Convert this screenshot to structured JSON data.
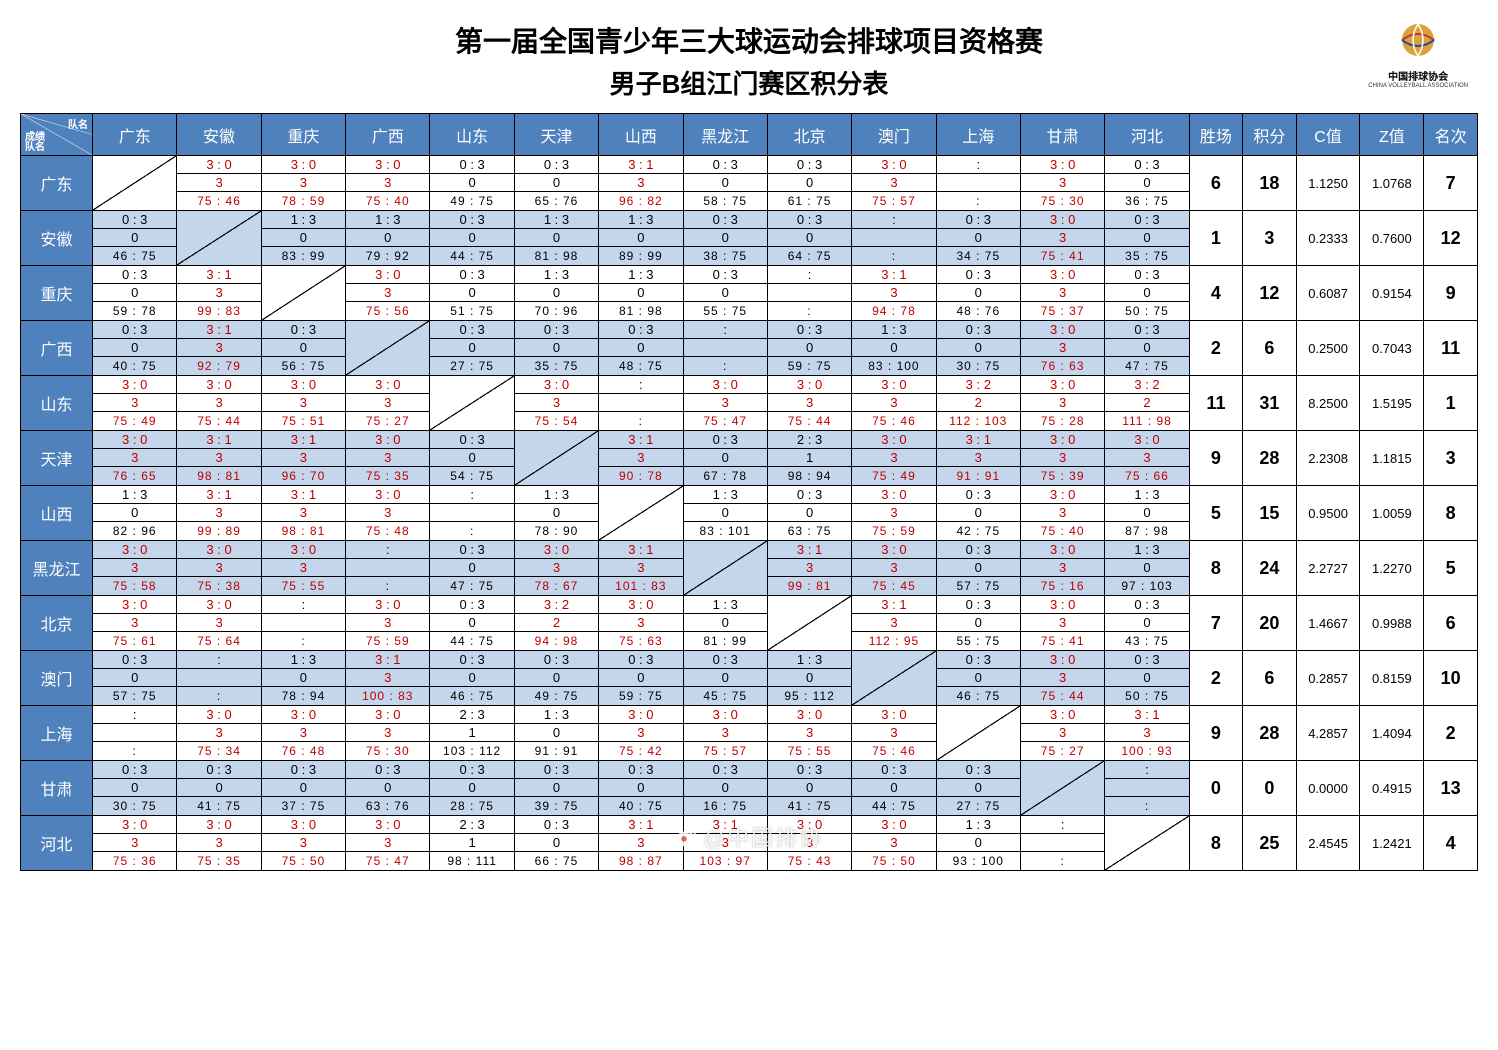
{
  "title_line1": "第一届全国青少年三大球运动会排球项目资格赛",
  "title_line2": "男子B组江门赛区积分表",
  "logo_text": "中国排球协会",
  "logo_sub": "CHINA VOLLEYBALL ASSOCIATION",
  "watermark": "@中国排协",
  "corner_labels": {
    "top": "队名",
    "mid": "成绩",
    "bot": "队名"
  },
  "col_teams": [
    "广东",
    "安徽",
    "重庆",
    "广西",
    "山东",
    "天津",
    "山西",
    "黑龙江",
    "北京",
    "澳门",
    "上海",
    "甘肃",
    "河北"
  ],
  "row_teams": [
    "广东",
    "安徽",
    "重庆",
    "广西",
    "山东",
    "天津",
    "山西",
    "黑龙江",
    "北京",
    "澳门",
    "上海",
    "甘肃",
    "河北"
  ],
  "stat_headers": [
    "胜场",
    "积分",
    "C值",
    "Z值",
    "名次"
  ],
  "stats": [
    {
      "wins": "6",
      "pts": "18",
      "c": "1.1250",
      "z": "1.0768",
      "rank": "7"
    },
    {
      "wins": "1",
      "pts": "3",
      "c": "0.2333",
      "z": "0.7600",
      "rank": "12"
    },
    {
      "wins": "4",
      "pts": "12",
      "c": "0.6087",
      "z": "0.9154",
      "rank": "9"
    },
    {
      "wins": "2",
      "pts": "6",
      "c": "0.2500",
      "z": "0.7043",
      "rank": "11"
    },
    {
      "wins": "11",
      "pts": "31",
      "c": "8.2500",
      "z": "1.5195",
      "rank": "1"
    },
    {
      "wins": "9",
      "pts": "28",
      "c": "2.2308",
      "z": "1.1815",
      "rank": "3"
    },
    {
      "wins": "5",
      "pts": "15",
      "c": "0.9500",
      "z": "1.0059",
      "rank": "8"
    },
    {
      "wins": "8",
      "pts": "24",
      "c": "2.2727",
      "z": "1.2270",
      "rank": "5"
    },
    {
      "wins": "7",
      "pts": "20",
      "c": "1.4667",
      "z": "0.9988",
      "rank": "6"
    },
    {
      "wins": "2",
      "pts": "6",
      "c": "0.2857",
      "z": "0.8159",
      "rank": "10"
    },
    {
      "wins": "9",
      "pts": "28",
      "c": "4.2857",
      "z": "1.4094",
      "rank": "2"
    },
    {
      "wins": "0",
      "pts": "0",
      "c": "0.0000",
      "z": "0.4915",
      "rank": "13"
    },
    {
      "wins": "8",
      "pts": "25",
      "c": "2.4545",
      "z": "1.2421",
      "rank": "4"
    }
  ],
  "grid": [
    [
      null,
      {
        "s": "3 : 0",
        "p": "3",
        "t": "75 : 46",
        "w": true
      },
      {
        "s": "3 : 0",
        "p": "3",
        "t": "78 : 59",
        "w": true
      },
      {
        "s": "3 : 0",
        "p": "3",
        "t": "75 : 40",
        "w": true
      },
      {
        "s": "0 : 3",
        "p": "0",
        "t": "49 : 75",
        "w": false
      },
      {
        "s": "0 : 3",
        "p": "0",
        "t": "65 : 76",
        "w": false
      },
      {
        "s": "3 : 1",
        "p": "3",
        "t": "96 : 82",
        "w": true
      },
      {
        "s": "0 : 3",
        "p": "0",
        "t": "58 : 75",
        "w": false
      },
      {
        "s": "0 : 3",
        "p": "0",
        "t": "61 : 75",
        "w": false
      },
      {
        "s": "3 : 0",
        "p": "3",
        "t": "75 : 57",
        "w": true
      },
      {
        "s": ":",
        "p": "",
        "t": ":",
        "w": null
      },
      {
        "s": "3 : 0",
        "p": "3",
        "t": "75 : 30",
        "w": true
      },
      {
        "s": "0 : 3",
        "p": "0",
        "t": "36 : 75",
        "w": false
      }
    ],
    [
      {
        "s": "0 : 3",
        "p": "0",
        "t": "46 : 75",
        "w": false
      },
      null,
      {
        "s": "1 : 3",
        "p": "0",
        "t": "83 : 99",
        "w": false
      },
      {
        "s": "1 : 3",
        "p": "0",
        "t": "79 : 92",
        "w": false
      },
      {
        "s": "0 : 3",
        "p": "0",
        "t": "44 : 75",
        "w": false
      },
      {
        "s": "1 : 3",
        "p": "0",
        "t": "81 : 98",
        "w": false
      },
      {
        "s": "1 : 3",
        "p": "0",
        "t": "89 : 99",
        "w": false
      },
      {
        "s": "0 : 3",
        "p": "0",
        "t": "38 : 75",
        "w": false
      },
      {
        "s": "0 : 3",
        "p": "0",
        "t": "64 : 75",
        "w": false
      },
      {
        "s": ":",
        "p": "",
        "t": ":",
        "w": null
      },
      {
        "s": "0 : 3",
        "p": "0",
        "t": "34 : 75",
        "w": false
      },
      {
        "s": "3 : 0",
        "p": "3",
        "t": "75 : 41",
        "w": true
      },
      {
        "s": "0 : 3",
        "p": "0",
        "t": "35 : 75",
        "w": false
      }
    ],
    [
      {
        "s": "0 : 3",
        "p": "0",
        "t": "59 : 78",
        "w": false
      },
      {
        "s": "3 : 1",
        "p": "3",
        "t": "99 : 83",
        "w": true
      },
      null,
      {
        "s": "3 : 0",
        "p": "3",
        "t": "75 : 56",
        "w": true
      },
      {
        "s": "0 : 3",
        "p": "0",
        "t": "51 : 75",
        "w": false
      },
      {
        "s": "1 : 3",
        "p": "0",
        "t": "70 : 96",
        "w": false
      },
      {
        "s": "1 : 3",
        "p": "0",
        "t": "81 : 98",
        "w": false
      },
      {
        "s": "0 : 3",
        "p": "0",
        "t": "55 : 75",
        "w": false
      },
      {
        "s": ":",
        "p": "",
        "t": ":",
        "w": null
      },
      {
        "s": "3 : 1",
        "p": "3",
        "t": "94 : 78",
        "w": true
      },
      {
        "s": "0 : 3",
        "p": "0",
        "t": "48 : 76",
        "w": false
      },
      {
        "s": "3 : 0",
        "p": "3",
        "t": "75 : 37",
        "w": true
      },
      {
        "s": "0 : 3",
        "p": "0",
        "t": "50 : 75",
        "w": false
      }
    ],
    [
      {
        "s": "0 : 3",
        "p": "0",
        "t": "40 : 75",
        "w": false
      },
      {
        "s": "3 : 1",
        "p": "3",
        "t": "92 : 79",
        "w": true
      },
      {
        "s": "0 : 3",
        "p": "0",
        "t": "56 : 75",
        "w": false
      },
      null,
      {
        "s": "0 : 3",
        "p": "0",
        "t": "27 : 75",
        "w": false
      },
      {
        "s": "0 : 3",
        "p": "0",
        "t": "35 : 75",
        "w": false
      },
      {
        "s": "0 : 3",
        "p": "0",
        "t": "48 : 75",
        "w": false
      },
      {
        "s": ":",
        "p": "",
        "t": ":",
        "w": null
      },
      {
        "s": "0 : 3",
        "p": "0",
        "t": "59 : 75",
        "w": false
      },
      {
        "s": "1 : 3",
        "p": "0",
        "t": "83 : 100",
        "w": false
      },
      {
        "s": "0 : 3",
        "p": "0",
        "t": "30 : 75",
        "w": false
      },
      {
        "s": "3 : 0",
        "p": "3",
        "t": "76 : 63",
        "w": true
      },
      {
        "s": "0 : 3",
        "p": "0",
        "t": "47 : 75",
        "w": false
      }
    ],
    [
      {
        "s": "3 : 0",
        "p": "3",
        "t": "75 : 49",
        "w": true
      },
      {
        "s": "3 : 0",
        "p": "3",
        "t": "75 : 44",
        "w": true
      },
      {
        "s": "3 : 0",
        "p": "3",
        "t": "75 : 51",
        "w": true
      },
      {
        "s": "3 : 0",
        "p": "3",
        "t": "75 : 27",
        "w": true
      },
      null,
      {
        "s": "3 : 0",
        "p": "3",
        "t": "75 : 54",
        "w": true
      },
      {
        "s": ":",
        "p": "",
        "t": ":",
        "w": null
      },
      {
        "s": "3 : 0",
        "p": "3",
        "t": "75 : 47",
        "w": true
      },
      {
        "s": "3 : 0",
        "p": "3",
        "t": "75 : 44",
        "w": true
      },
      {
        "s": "3 : 0",
        "p": "3",
        "t": "75 : 46",
        "w": true
      },
      {
        "s": "3 : 2",
        "p": "2",
        "t": "112 : 103",
        "w": true
      },
      {
        "s": "3 : 0",
        "p": "3",
        "t": "75 : 28",
        "w": true
      },
      {
        "s": "3 : 2",
        "p": "2",
        "t": "111 : 98",
        "w": true
      }
    ],
    [
      {
        "s": "3 : 0",
        "p": "3",
        "t": "76 : 65",
        "w": true
      },
      {
        "s": "3 : 1",
        "p": "3",
        "t": "98 : 81",
        "w": true
      },
      {
        "s": "3 : 1",
        "p": "3",
        "t": "96 : 70",
        "w": true
      },
      {
        "s": "3 : 0",
        "p": "3",
        "t": "75 : 35",
        "w": true
      },
      {
        "s": "0 : 3",
        "p": "0",
        "t": "54 : 75",
        "w": false
      },
      null,
      {
        "s": "3 : 1",
        "p": "3",
        "t": "90 : 78",
        "w": true
      },
      {
        "s": "0 : 3",
        "p": "0",
        "t": "67 : 78",
        "w": false
      },
      {
        "s": "2 : 3",
        "p": "1",
        "t": "98 : 94",
        "w": false
      },
      {
        "s": "3 : 0",
        "p": "3",
        "t": "75 : 49",
        "w": true
      },
      {
        "s": "3 : 1",
        "p": "3",
        "t": "91 : 91",
        "w": true
      },
      {
        "s": "3 : 0",
        "p": "3",
        "t": "75 : 39",
        "w": true
      },
      {
        "s": "3 : 0",
        "p": "3",
        "t": "75 : 66",
        "w": true
      }
    ],
    [
      {
        "s": "1 : 3",
        "p": "0",
        "t": "82 : 96",
        "w": false
      },
      {
        "s": "3 : 1",
        "p": "3",
        "t": "99 : 89",
        "w": true
      },
      {
        "s": "3 : 1",
        "p": "3",
        "t": "98 : 81",
        "w": true
      },
      {
        "s": "3 : 0",
        "p": "3",
        "t": "75 : 48",
        "w": true
      },
      {
        "s": ":",
        "p": "",
        "t": ":",
        "w": null
      },
      {
        "s": "1 : 3",
        "p": "0",
        "t": "78 : 90",
        "w": false
      },
      null,
      {
        "s": "1 : 3",
        "p": "0",
        "t": "83 : 101",
        "w": false
      },
      {
        "s": "0 : 3",
        "p": "0",
        "t": "63 : 75",
        "w": false
      },
      {
        "s": "3 : 0",
        "p": "3",
        "t": "75 : 59",
        "w": true
      },
      {
        "s": "0 : 3",
        "p": "0",
        "t": "42 : 75",
        "w": false
      },
      {
        "s": "3 : 0",
        "p": "3",
        "t": "75 : 40",
        "w": true
      },
      {
        "s": "1 : 3",
        "p": "0",
        "t": "87 : 98",
        "w": false
      }
    ],
    [
      {
        "s": "3 : 0",
        "p": "3",
        "t": "75 : 58",
        "w": true
      },
      {
        "s": "3 : 0",
        "p": "3",
        "t": "75 : 38",
        "w": true
      },
      {
        "s": "3 : 0",
        "p": "3",
        "t": "75 : 55",
        "w": true
      },
      {
        "s": ":",
        "p": "",
        "t": ":",
        "w": null
      },
      {
        "s": "0 : 3",
        "p": "0",
        "t": "47 : 75",
        "w": false
      },
      {
        "s": "3 : 0",
        "p": "3",
        "t": "78 : 67",
        "w": true
      },
      {
        "s": "3 : 1",
        "p": "3",
        "t": "101 : 83",
        "w": true
      },
      null,
      {
        "s": "3 : 1",
        "p": "3",
        "t": "99 : 81",
        "w": true
      },
      {
        "s": "3 : 0",
        "p": "3",
        "t": "75 : 45",
        "w": true
      },
      {
        "s": "0 : 3",
        "p": "0",
        "t": "57 : 75",
        "w": false
      },
      {
        "s": "3 : 0",
        "p": "3",
        "t": "75 : 16",
        "w": true
      },
      {
        "s": "1 : 3",
        "p": "0",
        "t": "97 : 103",
        "w": false
      }
    ],
    [
      {
        "s": "3 : 0",
        "p": "3",
        "t": "75 : 61",
        "w": true
      },
      {
        "s": "3 : 0",
        "p": "3",
        "t": "75 : 64",
        "w": true
      },
      {
        "s": ":",
        "p": "",
        "t": ":",
        "w": null
      },
      {
        "s": "3 : 0",
        "p": "3",
        "t": "75 : 59",
        "w": true
      },
      {
        "s": "0 : 3",
        "p": "0",
        "t": "44 : 75",
        "w": false
      },
      {
        "s": "3 : 2",
        "p": "2",
        "t": "94 : 98",
        "w": true
      },
      {
        "s": "3 : 0",
        "p": "3",
        "t": "75 : 63",
        "w": true
      },
      {
        "s": "1 : 3",
        "p": "0",
        "t": "81 : 99",
        "w": false
      },
      null,
      {
        "s": "3 : 1",
        "p": "3",
        "t": "112 : 95",
        "w": true
      },
      {
        "s": "0 : 3",
        "p": "0",
        "t": "55 : 75",
        "w": false
      },
      {
        "s": "3 : 0",
        "p": "3",
        "t": "75 : 41",
        "w": true
      },
      {
        "s": "0 : 3",
        "p": "0",
        "t": "43 : 75",
        "w": false
      }
    ],
    [
      {
        "s": "0 : 3",
        "p": "0",
        "t": "57 : 75",
        "w": false
      },
      {
        "s": ":",
        "p": "",
        "t": ":",
        "w": null
      },
      {
        "s": "1 : 3",
        "p": "0",
        "t": "78 : 94",
        "w": false
      },
      {
        "s": "3 : 1",
        "p": "3",
        "t": "100 : 83",
        "w": true
      },
      {
        "s": "0 : 3",
        "p": "0",
        "t": "46 : 75",
        "w": false
      },
      {
        "s": "0 : 3",
        "p": "0",
        "t": "49 : 75",
        "w": false
      },
      {
        "s": "0 : 3",
        "p": "0",
        "t": "59 : 75",
        "w": false
      },
      {
        "s": "0 : 3",
        "p": "0",
        "t": "45 : 75",
        "w": false
      },
      {
        "s": "1 : 3",
        "p": "0",
        "t": "95 : 112",
        "w": false
      },
      null,
      {
        "s": "0 : 3",
        "p": "0",
        "t": "46 : 75",
        "w": false
      },
      {
        "s": "3 : 0",
        "p": "3",
        "t": "75 : 44",
        "w": true
      },
      {
        "s": "0 : 3",
        "p": "0",
        "t": "50 : 75",
        "w": false
      }
    ],
    [
      {
        "s": ":",
        "p": "",
        "t": ":",
        "w": null
      },
      {
        "s": "3 : 0",
        "p": "3",
        "t": "75 : 34",
        "w": true
      },
      {
        "s": "3 : 0",
        "p": "3",
        "t": "76 : 48",
        "w": true
      },
      {
        "s": "3 : 0",
        "p": "3",
        "t": "75 : 30",
        "w": true
      },
      {
        "s": "2 : 3",
        "p": "1",
        "t": "103 : 112",
        "w": false
      },
      {
        "s": "1 : 3",
        "p": "0",
        "t": "91 : 91",
        "w": false
      },
      {
        "s": "3 : 0",
        "p": "3",
        "t": "75 : 42",
        "w": true
      },
      {
        "s": "3 : 0",
        "p": "3",
        "t": "75 : 57",
        "w": true
      },
      {
        "s": "3 : 0",
        "p": "3",
        "t": "75 : 55",
        "w": true
      },
      {
        "s": "3 : 0",
        "p": "3",
        "t": "75 : 46",
        "w": true
      },
      null,
      {
        "s": "3 : 0",
        "p": "3",
        "t": "75 : 27",
        "w": true
      },
      {
        "s": "3 : 1",
        "p": "3",
        "t": "100 : 93",
        "w": true
      }
    ],
    [
      {
        "s": "0 : 3",
        "p": "0",
        "t": "30 : 75",
        "w": false
      },
      {
        "s": "0 : 3",
        "p": "0",
        "t": "41 : 75",
        "w": false
      },
      {
        "s": "0 : 3",
        "p": "0",
        "t": "37 : 75",
        "w": false
      },
      {
        "s": "0 : 3",
        "p": "0",
        "t": "63 : 76",
        "w": false
      },
      {
        "s": "0 : 3",
        "p": "0",
        "t": "28 : 75",
        "w": false
      },
      {
        "s": "0 : 3",
        "p": "0",
        "t": "39 : 75",
        "w": false
      },
      {
        "s": "0 : 3",
        "p": "0",
        "t": "40 : 75",
        "w": false
      },
      {
        "s": "0 : 3",
        "p": "0",
        "t": "16 : 75",
        "w": false
      },
      {
        "s": "0 : 3",
        "p": "0",
        "t": "41 : 75",
        "w": false
      },
      {
        "s": "0 : 3",
        "p": "0",
        "t": "44 : 75",
        "w": false
      },
      {
        "s": "0 : 3",
        "p": "0",
        "t": "27 : 75",
        "w": false
      },
      null,
      {
        "s": ":",
        "p": "",
        "t": ":",
        "w": null
      }
    ],
    [
      {
        "s": "3 : 0",
        "p": "3",
        "t": "75 : 36",
        "w": true
      },
      {
        "s": "3 : 0",
        "p": "3",
        "t": "75 : 35",
        "w": true
      },
      {
        "s": "3 : 0",
        "p": "3",
        "t": "75 : 50",
        "w": true
      },
      {
        "s": "3 : 0",
        "p": "3",
        "t": "75 : 47",
        "w": true
      },
      {
        "s": "2 : 3",
        "p": "1",
        "t": "98 : 111",
        "w": false
      },
      {
        "s": "0 : 3",
        "p": "0",
        "t": "66 : 75",
        "w": false
      },
      {
        "s": "3 : 1",
        "p": "3",
        "t": "98 : 87",
        "w": true
      },
      {
        "s": "3 : 1",
        "p": "3",
        "t": "103 : 97",
        "w": true
      },
      {
        "s": "3 : 0",
        "p": "3",
        "t": "75 : 43",
        "w": true
      },
      {
        "s": "3 : 0",
        "p": "3",
        "t": "75 : 50",
        "w": true
      },
      {
        "s": "1 : 3",
        "p": "0",
        "t": "93 : 100",
        "w": false
      },
      {
        "s": ":",
        "p": "",
        "t": ":",
        "w": null
      },
      null
    ]
  ],
  "colors": {
    "header_bg": "#4f81bd",
    "header_fg": "#ffffff",
    "bandA": "#ffffff",
    "bandB": "#c3d6eb",
    "win": "#c00000",
    "lose": "#000000",
    "logo": "#d8a33a"
  }
}
